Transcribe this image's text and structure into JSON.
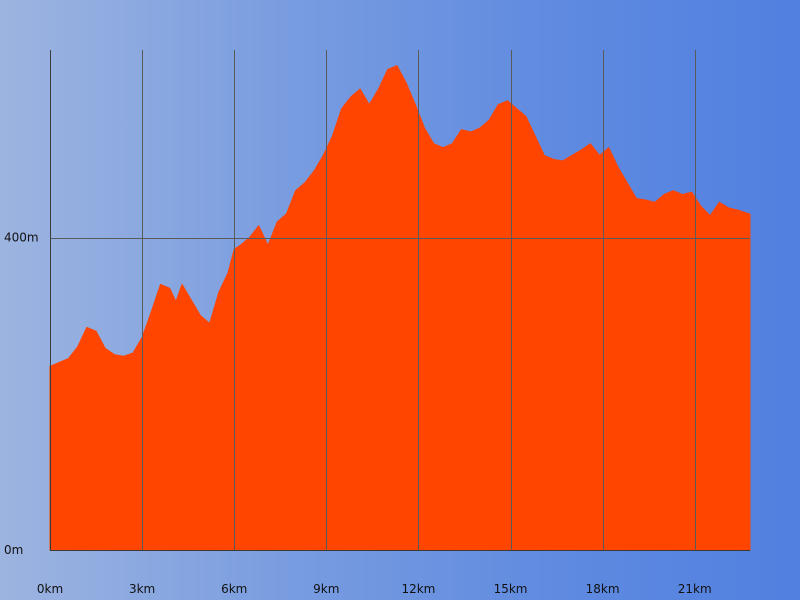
{
  "chart_data": {
    "type": "area",
    "title": "",
    "xlabel": "",
    "ylabel": "",
    "xlim": [
      0,
      22.8
    ],
    "ylim": [
      0,
      640
    ],
    "x_ticks": [
      0,
      3,
      6,
      9,
      12,
      15,
      18,
      21
    ],
    "x_tick_labels": [
      "0km",
      "3km",
      "6km",
      "9km",
      "12km",
      "15km",
      "18km",
      "21km"
    ],
    "y_ticks": [
      0,
      400
    ],
    "y_tick_labels": [
      "0m",
      "400m"
    ],
    "grid": true,
    "colors": {
      "fill": "#ff4500",
      "grid": "#5a5a5a"
    },
    "series": [
      {
        "x": [
          0,
          0.3,
          0.6,
          0.9,
          1.2,
          1.5,
          1.8,
          2.1,
          2.4,
          2.7,
          3.0,
          3.3,
          3.6,
          3.9,
          4.1,
          4.3,
          4.6,
          4.9,
          5.2,
          5.5,
          5.8,
          6.0,
          6.2,
          6.5,
          6.8,
          7.1,
          7.4,
          7.7,
          8.0,
          8.3,
          8.6,
          8.9,
          9.2,
          9.5,
          9.8,
          10.1,
          10.4,
          10.7,
          11.0,
          11.3,
          11.6,
          11.9,
          12.2,
          12.5,
          12.8,
          13.1,
          13.4,
          13.7,
          14.0,
          14.3,
          14.6,
          14.9,
          15.2,
          15.5,
          15.8,
          16.1,
          16.4,
          16.7,
          17.0,
          17.3,
          17.6,
          17.9,
          18.2,
          18.5,
          18.8,
          19.1,
          19.4,
          19.7,
          20.0,
          20.3,
          20.6,
          20.9,
          21.2,
          21.5,
          21.8,
          22.1,
          22.4,
          22.8
        ],
        "y": [
          235,
          240,
          245,
          260,
          285,
          280,
          258,
          250,
          248,
          252,
          272,
          305,
          340,
          335,
          318,
          340,
          320,
          300,
          290,
          330,
          355,
          385,
          390,
          400,
          415,
          390,
          420,
          430,
          460,
          470,
          485,
          505,
          530,
          565,
          580,
          590,
          570,
          590,
          615,
          620,
          598,
          570,
          540,
          520,
          515,
          520,
          538,
          535,
          540,
          550,
          570,
          575,
          565,
          555,
          530,
          505,
          500,
          498,
          505,
          512,
          520,
          505,
          515,
          490,
          470,
          450,
          448,
          445,
          455,
          460,
          455,
          458,
          440,
          428,
          445,
          438,
          435,
          430
        ]
      }
    ]
  }
}
